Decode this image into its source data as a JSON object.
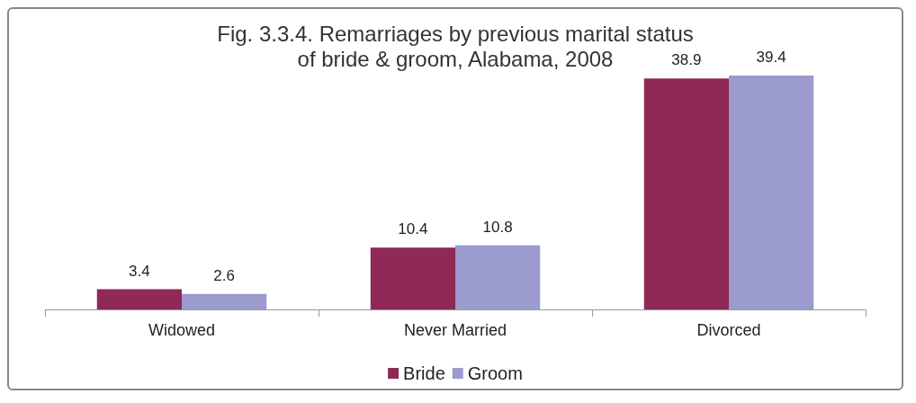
{
  "chart_data": {
    "type": "bar",
    "title": "Fig. 3.3.4. Remarriages by previous marital status\nof bride & groom, Alabama, 2008",
    "categories": [
      "Widowed",
      "Never Married",
      "Divorced"
    ],
    "series": [
      {
        "name": "Bride",
        "color": "#8e2a55",
        "values": [
          3.4,
          10.4,
          38.9
        ]
      },
      {
        "name": "Groom",
        "color": "#9b9bd0",
        "values": [
          2.6,
          10.8,
          39.4
        ]
      }
    ],
    "data_labels": true,
    "legend": "bottom",
    "grid": false
  }
}
